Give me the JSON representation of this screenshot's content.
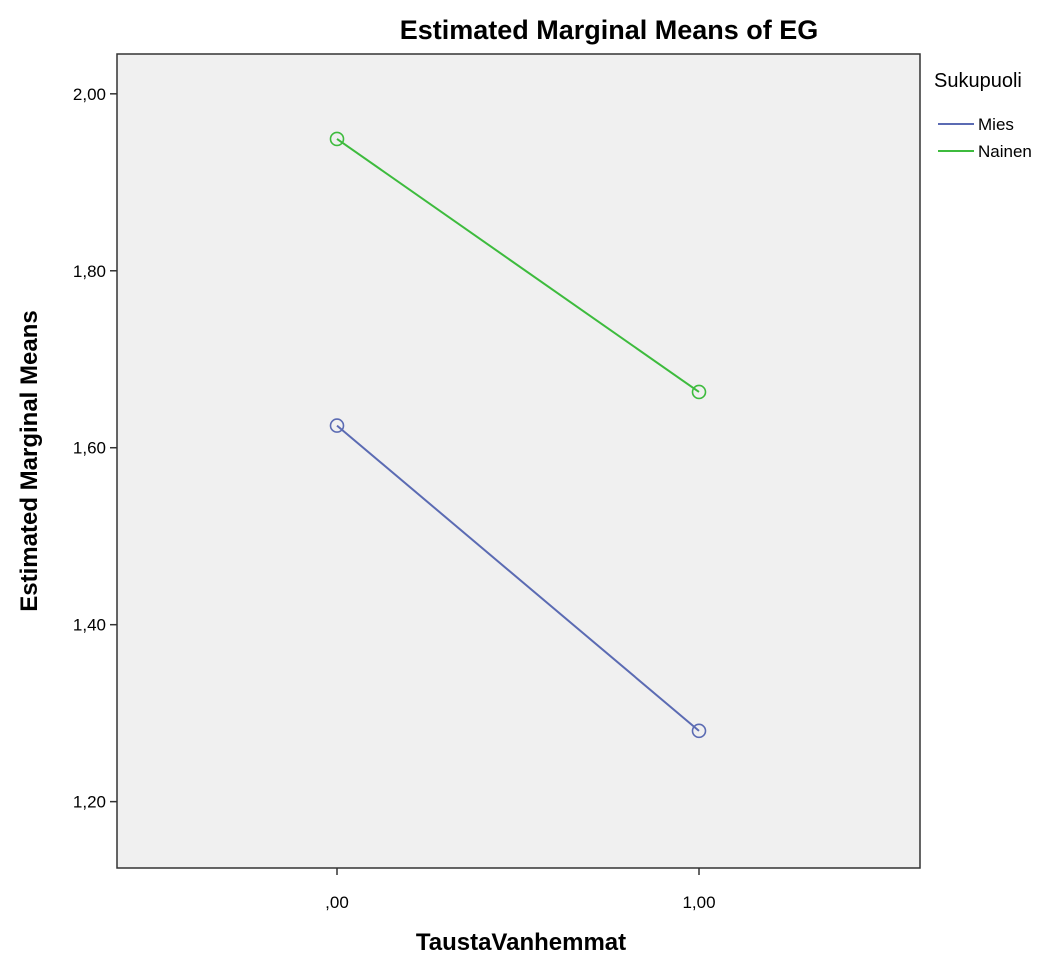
{
  "chart_data": {
    "type": "line",
    "title": "Estimated Marginal Means of EG",
    "xlabel": "TaustaVanhemmat",
    "ylabel": "Estimated Marginal Means",
    "x": [
      0,
      1
    ],
    "categories": [
      ",00",
      "1,00"
    ],
    "ylim": [
      1.125,
      2.045
    ],
    "yticks": [
      1.2,
      1.4,
      1.6,
      1.8,
      2.0
    ],
    "ytick_labels": [
      "1,20",
      "1,40",
      "1,60",
      "1,80",
      "2,00"
    ],
    "legend_title": "Sukupuoli",
    "legend_position": "right",
    "grid": false,
    "series": [
      {
        "name": "Mies",
        "color": "#5b6bb3",
        "values": [
          1.625,
          1.28
        ]
      },
      {
        "name": "Nainen",
        "color": "#3dbb3d",
        "values": [
          1.949,
          1.663
        ]
      }
    ],
    "plot_background": "#f0f0f0"
  }
}
